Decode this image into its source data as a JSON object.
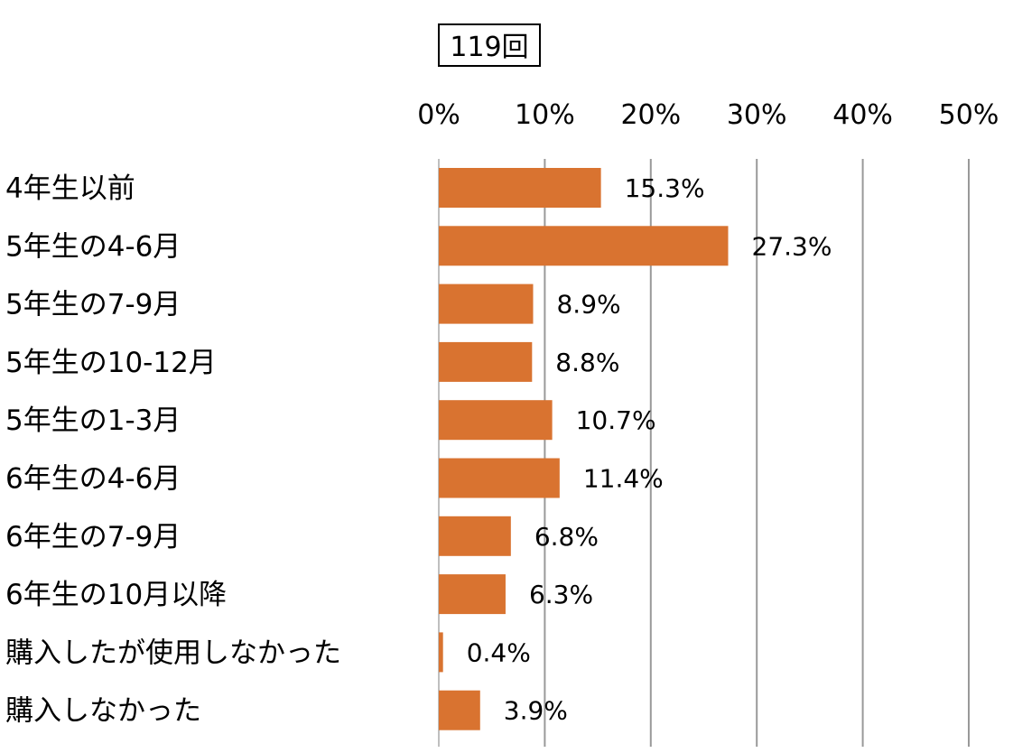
{
  "chart_data": {
    "type": "bar",
    "orientation": "horizontal",
    "title": "119回",
    "categories": [
      "4年生以前",
      "5年生の4-6月",
      "5年生の7-9月",
      "5年生の10-12月",
      "5年生の1-3月",
      "6年生の4-6月",
      "6年生の7-9月",
      "6年生の10月以降",
      "購入したが使用しなかった",
      "購入しなかった"
    ],
    "values": [
      15.3,
      27.3,
      8.9,
      8.8,
      10.7,
      11.4,
      6.8,
      6.3,
      0.4,
      3.9
    ],
    "data_labels": [
      "15.3%",
      "27.3%",
      "8.9%",
      "8.8%",
      "10.7%",
      "11.4%",
      "6.8%",
      "6.3%",
      "0.4%",
      "3.9%"
    ],
    "x_ticks": [
      0,
      10,
      20,
      30,
      40,
      50
    ],
    "x_tick_labels": [
      "0%",
      "10%",
      "20%",
      "30%",
      "40%",
      "50%"
    ],
    "xlim": [
      0,
      50
    ],
    "xlabel": "",
    "ylabel": "",
    "x_axis_position": "top",
    "grid": true,
    "legend": "none",
    "colors": {
      "bar": "#d97330",
      "grid": "#999999",
      "text": "#000000"
    }
  }
}
